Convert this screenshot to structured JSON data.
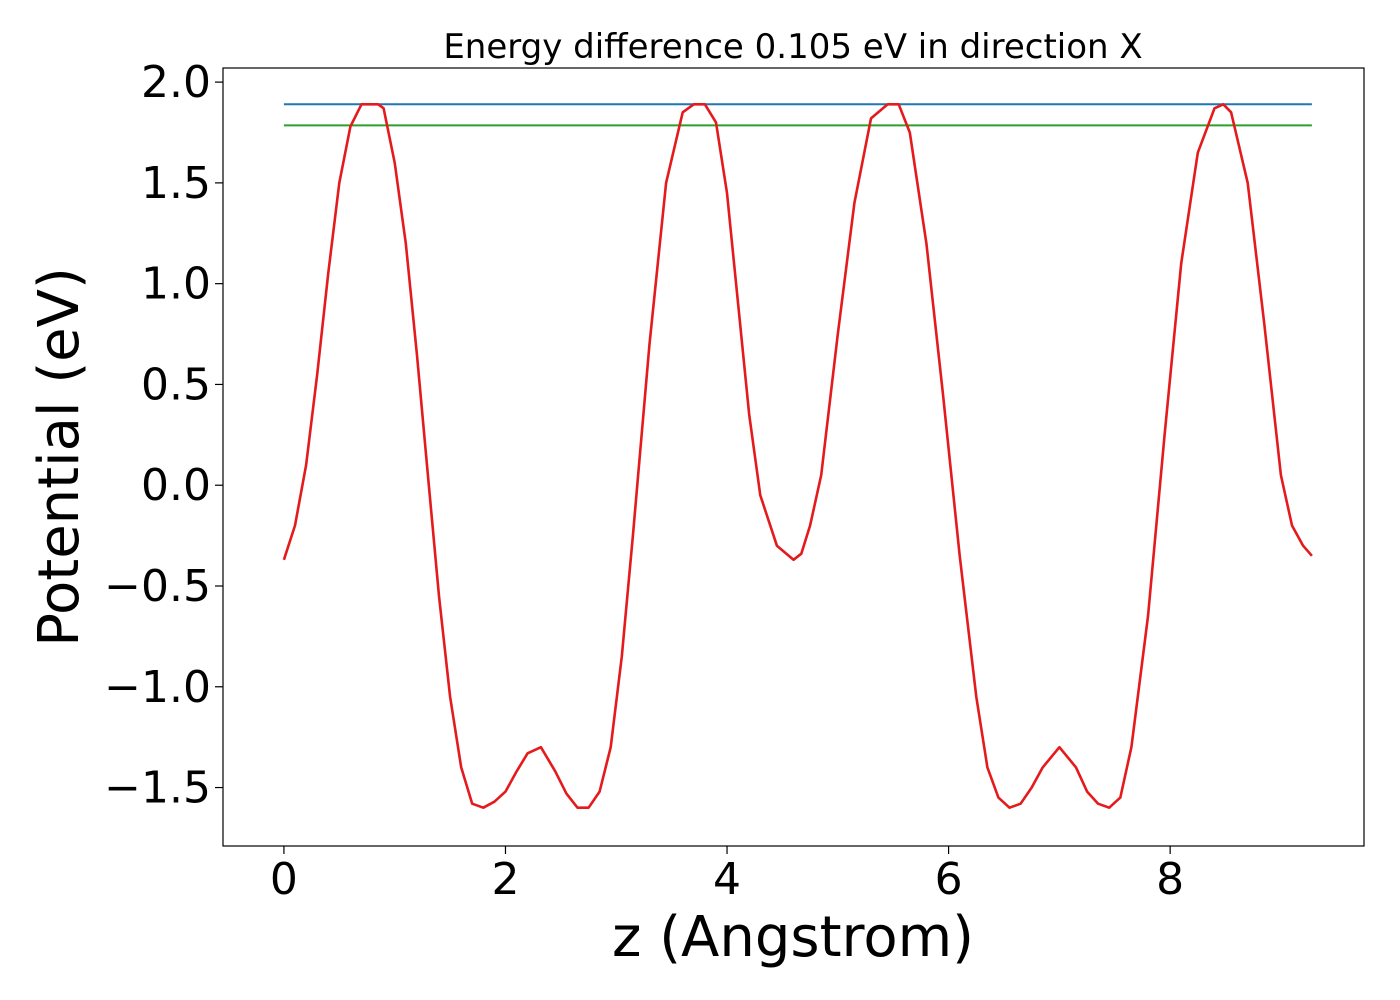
{
  "chart_data": {
    "type": "line",
    "title": "Energy difference 0.105 eV in direction X",
    "xlabel": "z (Angstrom)",
    "ylabel": "Potential (eV)",
    "xlim": [
      -0.55,
      9.75
    ],
    "ylim": [
      -1.79,
      2.07
    ],
    "xticks": [
      0,
      2,
      4,
      6,
      8
    ],
    "xtick_labels": [
      "0",
      "2",
      "4",
      "6",
      "8"
    ],
    "yticks": [
      -1.5,
      -1.0,
      -0.5,
      0.0,
      0.5,
      1.0,
      1.5,
      2.0
    ],
    "ytick_labels": [
      "−1.5",
      "−1.0",
      "−0.5",
      "0.0",
      "0.5",
      "1.0",
      "1.5",
      "2.0"
    ],
    "grid": false,
    "series": [
      {
        "color": "#1f77b4",
        "x": [
          0,
          9.28
        ],
        "y": [
          1.89,
          1.89
        ]
      },
      {
        "color": "#2ca02c",
        "x": [
          0,
          9.28
        ],
        "y": [
          1.785,
          1.785
        ]
      },
      {
        "color": "#e41a1c",
        "x": [
          0.0,
          0.1,
          0.2,
          0.3,
          0.4,
          0.5,
          0.6,
          0.7,
          0.8,
          0.85,
          0.9,
          1.0,
          1.1,
          1.2,
          1.3,
          1.4,
          1.5,
          1.6,
          1.7,
          1.8,
          1.9,
          2.0,
          2.1,
          2.2,
          2.32,
          2.45,
          2.55,
          2.65,
          2.75,
          2.85,
          2.95,
          3.05,
          3.15,
          3.3,
          3.45,
          3.6,
          3.7,
          3.8,
          3.9,
          4.0,
          4.1,
          4.2,
          4.3,
          4.45,
          4.6,
          4.67,
          4.75,
          4.85,
          5.0,
          5.15,
          5.3,
          5.45,
          5.55,
          5.65,
          5.8,
          5.95,
          6.1,
          6.25,
          6.35,
          6.45,
          6.55,
          6.65,
          6.75,
          6.85,
          7.0,
          7.15,
          7.25,
          7.35,
          7.45,
          7.55,
          7.65,
          7.8,
          7.95,
          8.1,
          8.25,
          8.4,
          8.48,
          8.55,
          8.7,
          8.85,
          9.0,
          9.1,
          9.2,
          9.28
        ],
        "y": [
          -0.37,
          -0.2,
          0.1,
          0.55,
          1.05,
          1.5,
          1.78,
          1.89,
          1.89,
          1.89,
          1.87,
          1.6,
          1.2,
          0.65,
          0.05,
          -0.55,
          -1.05,
          -1.4,
          -1.58,
          -1.6,
          -1.57,
          -1.52,
          -1.42,
          -1.33,
          -1.3,
          -1.42,
          -1.53,
          -1.6,
          -1.6,
          -1.52,
          -1.3,
          -0.85,
          -0.25,
          0.7,
          1.5,
          1.85,
          1.89,
          1.89,
          1.8,
          1.45,
          0.9,
          0.35,
          -0.05,
          -0.3,
          -0.37,
          -0.34,
          -0.2,
          0.05,
          0.75,
          1.4,
          1.82,
          1.89,
          1.89,
          1.75,
          1.2,
          0.45,
          -0.35,
          -1.05,
          -1.4,
          -1.55,
          -1.6,
          -1.58,
          -1.5,
          -1.4,
          -1.3,
          -1.4,
          -1.52,
          -1.58,
          -1.6,
          -1.55,
          -1.3,
          -0.65,
          0.25,
          1.1,
          1.65,
          1.87,
          1.89,
          1.85,
          1.5,
          0.8,
          0.05,
          -0.2,
          -0.3,
          -0.35
        ]
      }
    ]
  }
}
